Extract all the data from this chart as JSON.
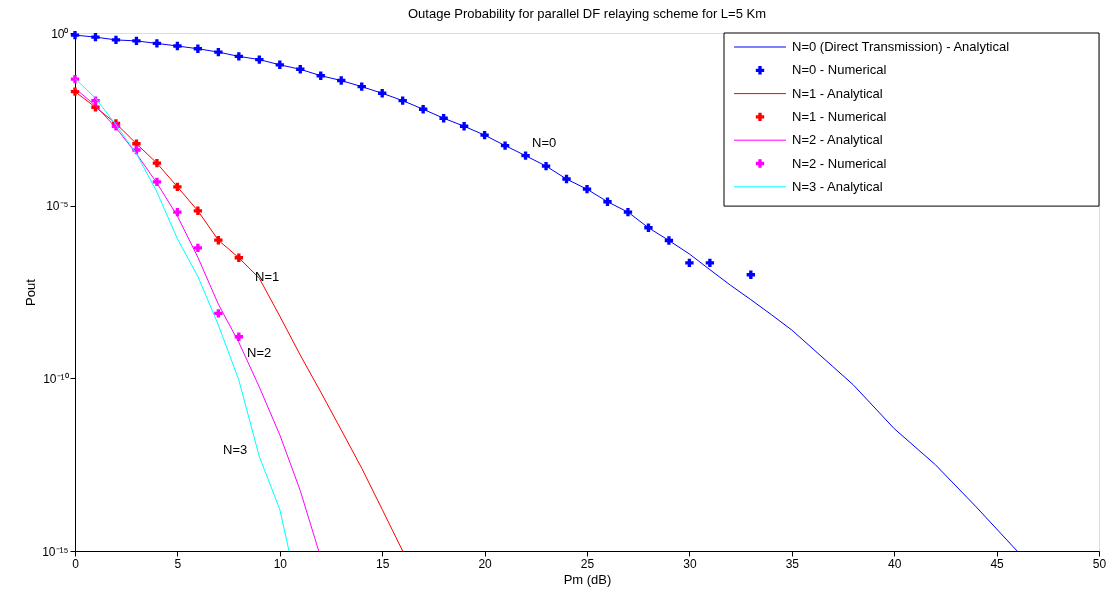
{
  "chart_data": {
    "type": "line",
    "title": "Outage Probability for parallel DF relaying scheme for L=5 Km",
    "xlabel": "Pm (dB)",
    "ylabel": "Pout",
    "xlim": [
      0,
      50
    ],
    "xticks": [
      0,
      5,
      10,
      15,
      20,
      25,
      30,
      35,
      40,
      45,
      50
    ],
    "ylim": [
      1e-15,
      1
    ],
    "yticks": [
      {
        "value": 1e-15,
        "label": "10⁻¹⁵"
      },
      {
        "value": 1e-10,
        "label": "10⁻¹⁰"
      },
      {
        "value": 1e-05,
        "label": "10⁻⁵"
      },
      {
        "value": 1,
        "label": "10⁰"
      }
    ],
    "log": true,
    "grid": false,
    "legend": "top right",
    "line_style": "solid",
    "series": [
      {
        "name": "N=0 (Direct Transmission) - Analytical",
        "color": "#0000ff",
        "x": [
          0,
          1,
          2,
          3,
          4,
          5,
          6,
          7,
          8,
          9,
          10,
          11,
          12,
          13,
          14,
          15,
          16,
          17,
          18,
          19,
          20,
          21,
          22,
          23,
          24,
          25,
          26,
          27,
          28,
          29,
          30,
          31,
          32,
          33,
          34,
          35,
          37,
          38,
          40,
          42,
          44,
          46
        ],
        "values": [
          0.87,
          0.76,
          0.63,
          0.59,
          0.5,
          0.42,
          0.35,
          0.28,
          0.21,
          0.17,
          0.12,
          0.089,
          0.058,
          0.042,
          0.028,
          0.018,
          0.011,
          0.0062,
          0.0034,
          0.002,
          0.0011,
          0.00055,
          0.00028,
          0.00014,
          5.9e-05,
          3e-05,
          1.3e-05,
          6.5e-06,
          2.3e-06,
          9.8e-07,
          4e-07,
          1.4e-07,
          5e-08,
          1.9e-08,
          7e-09,
          2.5e-09,
          2.2e-10,
          6.5e-11,
          3.5e-12,
          3.2e-13,
          1.9e-14,
          1e-15
        ]
      },
      {
        "name": "N=0 - Numerical",
        "type": "scatter",
        "marker": "cross",
        "color": "#0000ff",
        "x": [
          0,
          1,
          2,
          3,
          4,
          5,
          6,
          7,
          8,
          9,
          10,
          11,
          12,
          13,
          14,
          15,
          16,
          17,
          18,
          19,
          20,
          21,
          22,
          23,
          24,
          25,
          26,
          27,
          28,
          29,
          30,
          31,
          33
        ],
        "values": [
          0.87,
          0.76,
          0.63,
          0.59,
          0.5,
          0.42,
          0.35,
          0.28,
          0.21,
          0.17,
          0.12,
          0.089,
          0.058,
          0.042,
          0.028,
          0.018,
          0.011,
          0.0062,
          0.0034,
          0.002,
          0.0011,
          0.00055,
          0.00028,
          0.00014,
          5.9e-05,
          3e-05,
          1.3e-05,
          6.5e-06,
          2.3e-06,
          9.8e-07,
          2.2e-07,
          2.2e-07,
          1e-07
        ]
      },
      {
        "name": "N=1 - Analytical",
        "color": "#ff0000",
        "x": [
          0,
          1,
          2,
          3,
          4,
          5,
          6,
          7,
          8,
          9,
          10,
          11,
          12,
          13,
          14,
          15,
          16
        ],
        "values": [
          0.02,
          0.0071,
          0.0024,
          0.00062,
          0.00017,
          3.5e-05,
          7.1e-06,
          1e-06,
          3.1e-07,
          7.9e-08,
          6.3e-09,
          4.7e-10,
          4e-11,
          3.2e-12,
          2.5e-13,
          1.6e-14,
          1e-15
        ]
      },
      {
        "name": "N=1 - Numerical",
        "type": "scatter",
        "marker": "cross",
        "color": "#ff0000",
        "x": [
          0,
          1,
          2,
          3,
          4,
          5,
          6,
          7,
          8
        ],
        "values": [
          0.02,
          0.0071,
          0.0024,
          0.00062,
          0.00017,
          3.5e-05,
          7.1e-06,
          1e-06,
          3.1e-07
        ]
      },
      {
        "name": "N=2 - Analytical",
        "color": "#ff00ff",
        "x": [
          0,
          1,
          2,
          3,
          4,
          5,
          6,
          7,
          8,
          9,
          10,
          11,
          11.9
        ],
        "values": [
          0.025,
          0.0079,
          0.0018,
          0.00032,
          4.5e-05,
          5e-06,
          3.2e-07,
          1.4e-08,
          1.1e-09,
          5.6e-11,
          2.3e-12,
          5.6e-14,
          1e-15
        ]
      },
      {
        "name": "N=2 - Numerical",
        "type": "scatter",
        "marker": "cross",
        "color": "#ff00ff",
        "x": [
          0,
          1,
          2,
          3,
          4,
          5,
          6,
          7,
          8
        ],
        "values": [
          0.046,
          0.011,
          0.002,
          0.00041,
          4.9e-05,
          6.5e-06,
          6e-07,
          7.6e-09,
          1.6e-09
        ]
      },
      {
        "name": "N=3 - Analytical",
        "color": "#00ffff",
        "x": [
          0,
          1,
          2,
          3,
          4,
          5,
          6,
          7,
          8,
          9,
          10,
          10.45
        ],
        "values": [
          0.048,
          0.013,
          0.0022,
          0.00032,
          2.5e-05,
          1.1e-06,
          8.9e-08,
          3.5e-09,
          8.9e-11,
          5.4e-13,
          1.6e-14,
          1e-15
        ]
      }
    ],
    "annotations": [
      "N=0",
      "N=1",
      "N=2",
      "N=3"
    ]
  }
}
